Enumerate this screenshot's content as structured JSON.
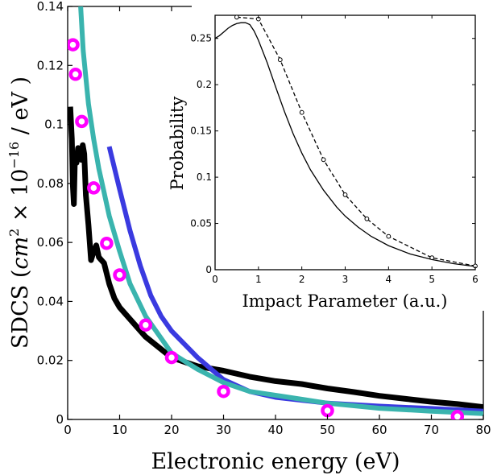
{
  "chart_data": [
    {
      "type": "line",
      "title": "",
      "xlabel": "Electronic energy (eV)",
      "ylabel_prefix": "SDCS (",
      "ylabel_math_a": "cm",
      "ylabel_sup_a": "2",
      "ylabel_math_b": " × 10",
      "ylabel_sup_b": "−16",
      "ylabel_suffix": " / eV )",
      "xlim": [
        0,
        80
      ],
      "ylim": [
        0,
        0.14
      ],
      "x_ticks": [
        0,
        10,
        20,
        30,
        40,
        50,
        60,
        70,
        80
      ],
      "x_tick_labels": [
        "0",
        "10",
        "20",
        "30",
        "40",
        "50",
        "60",
        "70",
        "80"
      ],
      "y_ticks": [
        0,
        0.02,
        0.04,
        0.06,
        0.08,
        0.1,
        0.12,
        0.14
      ],
      "y_tick_labels": [
        "0",
        "0.02",
        "0.04",
        "0.06",
        "0.08",
        "0.1",
        "0.12",
        "0.14"
      ],
      "grid": false,
      "series": [
        {
          "name": "black",
          "color": "#000000",
          "style": "solid-thick",
          "x": [
            0.5,
            0.8,
            1.0,
            1.2,
            1.4,
            1.7,
            2.0,
            2.3,
            2.6,
            2.9,
            3.2,
            3.5,
            4.0,
            4.5,
            5.0,
            5.5,
            6.0,
            7.0,
            8.0,
            9.0,
            10.0,
            12.0,
            15.0,
            20.0,
            25.0,
            30.0,
            35.0,
            40.0,
            45.0,
            50.0,
            55.0,
            60.0,
            65.0,
            70.0,
            75.0,
            80.0
          ],
          "y": [
            0.106,
            0.095,
            0.079,
            0.073,
            0.089,
            0.087,
            0.092,
            0.09,
            0.088,
            0.093,
            0.09,
            0.076,
            0.066,
            0.054,
            0.057,
            0.059,
            0.055,
            0.053,
            0.046,
            0.041,
            0.038,
            0.034,
            0.028,
            0.021,
            0.018,
            0.0165,
            0.0145,
            0.013,
            0.012,
            0.0105,
            0.0093,
            0.008,
            0.007,
            0.006,
            0.0052,
            0.0042
          ]
        },
        {
          "name": "blue",
          "color": "#3a3ae0",
          "style": "solid",
          "x": [
            8,
            10,
            12,
            14,
            16,
            18,
            20,
            25,
            30,
            35,
            40,
            50,
            60,
            70,
            80
          ],
          "y": [
            0.0925,
            0.078,
            0.064,
            0.052,
            0.042,
            0.035,
            0.03,
            0.021,
            0.0135,
            0.0095,
            0.0075,
            0.0055,
            0.0045,
            0.0037,
            0.0028
          ]
        },
        {
          "name": "teal",
          "color": "#3ab4ae",
          "style": "solid",
          "x": [
            2.5,
            3,
            4,
            5,
            6,
            7,
            8,
            10,
            12,
            15,
            20,
            25,
            30,
            35,
            40,
            50,
            60,
            70,
            80
          ],
          "y": [
            0.14,
            0.125,
            0.107,
            0.095,
            0.085,
            0.077,
            0.069,
            0.057,
            0.046,
            0.035,
            0.0225,
            0.017,
            0.0125,
            0.0095,
            0.0082,
            0.0055,
            0.0038,
            0.0028,
            0.002
          ]
        },
        {
          "name": "magenta circles",
          "color": "#ff00ff",
          "style": "markers",
          "x": [
            1,
            1.5,
            2.7,
            5,
            7.5,
            10,
            15,
            20,
            30,
            50,
            75
          ],
          "y": [
            0.127,
            0.117,
            0.101,
            0.0785,
            0.0597,
            0.049,
            0.032,
            0.021,
            0.0095,
            0.003,
            0.001
          ]
        }
      ]
    },
    {
      "type": "line",
      "title": "",
      "xlabel": "Impact Parameter (a.u.)",
      "ylabel": "Probability",
      "xlim": [
        0,
        6
      ],
      "ylim": [
        0,
        0.275
      ],
      "x_ticks": [
        0,
        1,
        2,
        3,
        4,
        5,
        6
      ],
      "x_tick_labels": [
        "0",
        "1",
        "2",
        "3",
        "4",
        "5",
        "6"
      ],
      "y_ticks": [
        0,
        0.05,
        0.1,
        0.15,
        0.2,
        0.25
      ],
      "y_tick_labels": [
        "0",
        "0.05",
        "0.1",
        "0.15",
        "0.2",
        "0.25"
      ],
      "grid": false,
      "series": [
        {
          "name": "solid",
          "color": "#000000",
          "style": "solid",
          "x": [
            0,
            0.1,
            0.2,
            0.3,
            0.4,
            0.5,
            0.6,
            0.7,
            0.8,
            0.9,
            1.0,
            1.2,
            1.4,
            1.6,
            1.8,
            2.0,
            2.2,
            2.5,
            2.8,
            3.0,
            3.3,
            3.6,
            4.0,
            4.5,
            5.0,
            5.5,
            6.0
          ],
          "y": [
            0.25,
            0.253,
            0.257,
            0.261,
            0.264,
            0.266,
            0.267,
            0.267,
            0.265,
            0.258,
            0.248,
            0.224,
            0.197,
            0.171,
            0.147,
            0.126,
            0.108,
            0.086,
            0.068,
            0.058,
            0.046,
            0.036,
            0.026,
            0.017,
            0.011,
            0.0065,
            0.0035
          ]
        },
        {
          "name": "dashed-circles",
          "color": "#000000",
          "style": "dashed-markers",
          "x": [
            0.5,
            1.0,
            1.5,
            2.0,
            2.5,
            3.0,
            3.5,
            4.0,
            5.0,
            6.0
          ],
          "y": [
            0.273,
            0.271,
            0.227,
            0.17,
            0.119,
            0.081,
            0.055,
            0.036,
            0.013,
            0.004
          ]
        }
      ]
    }
  ]
}
